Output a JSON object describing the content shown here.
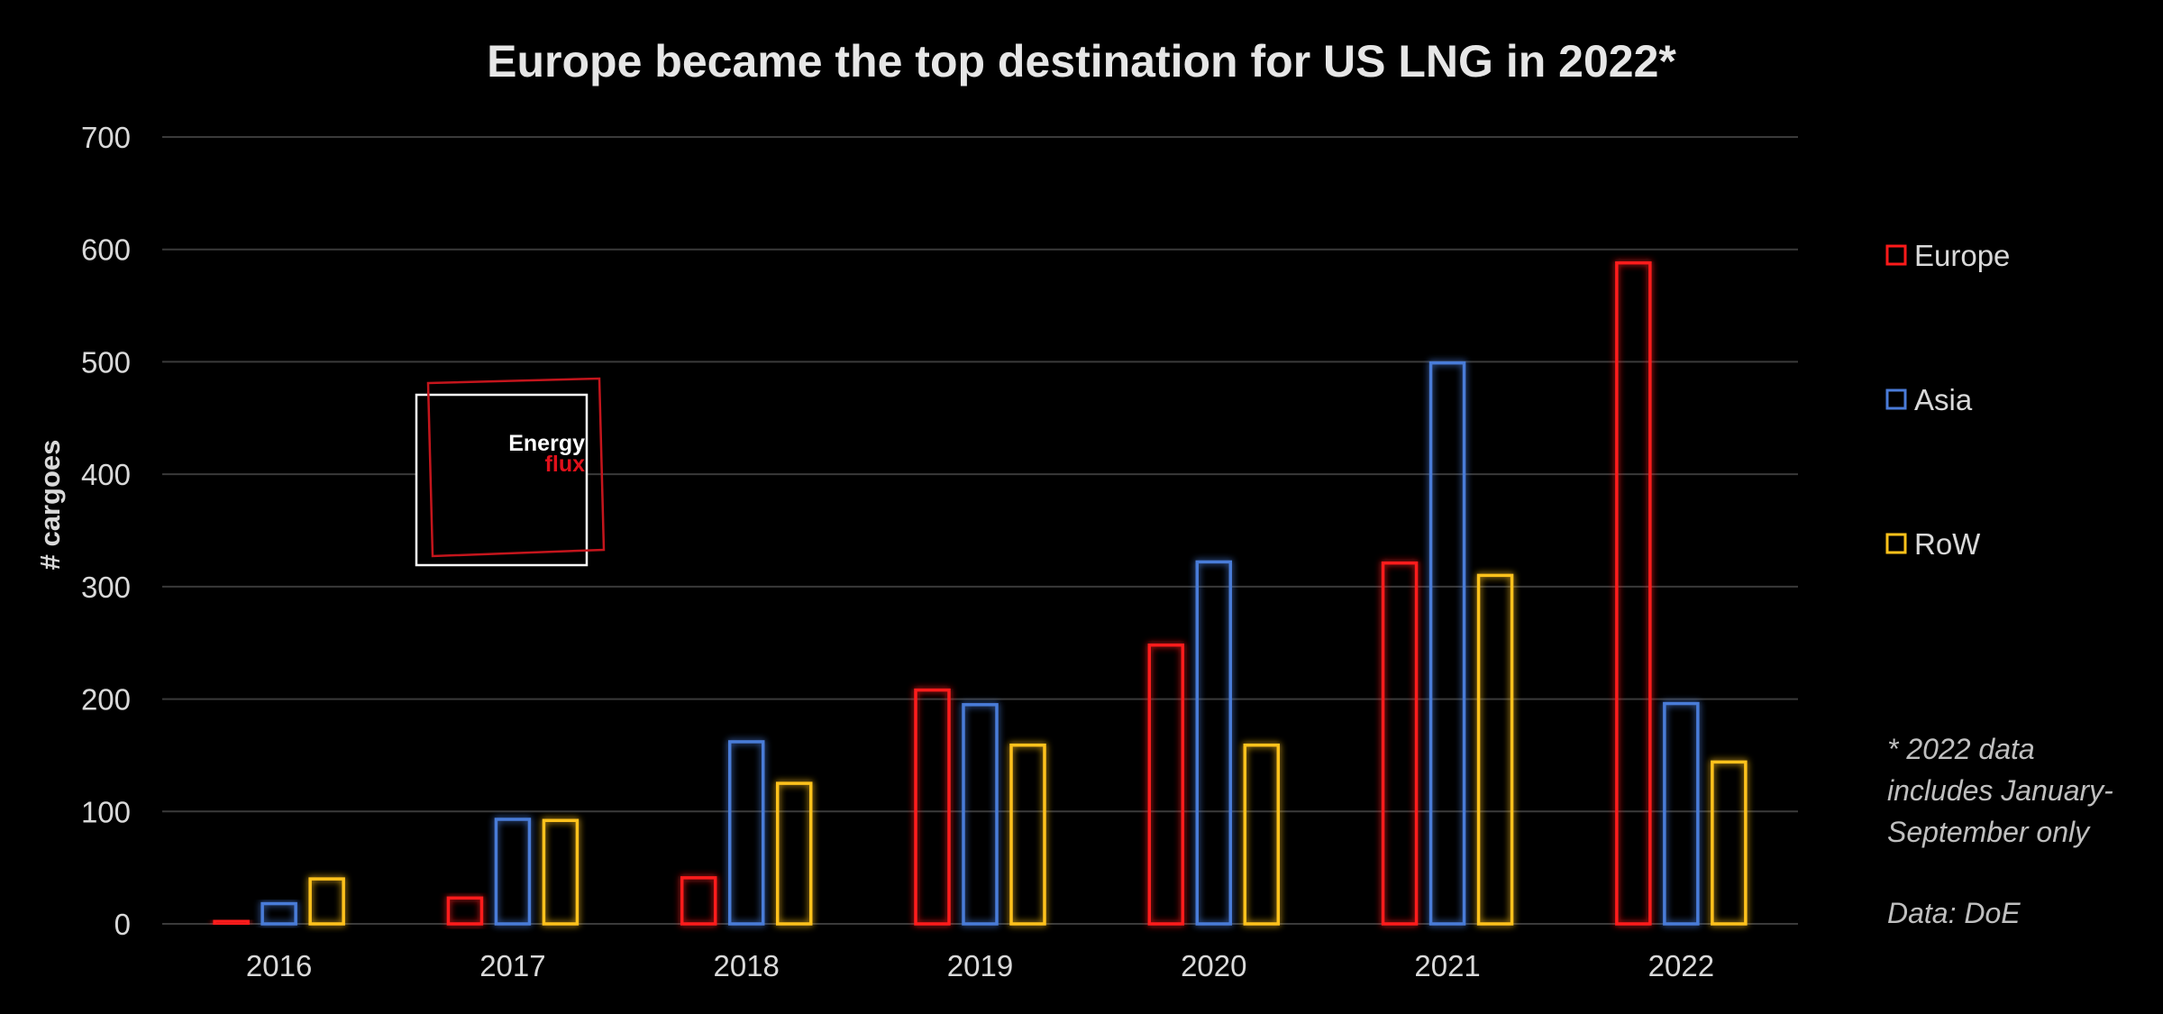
{
  "colors": {
    "europe": "#ff1a1a",
    "asia": "#4a7bd8",
    "row": "#ffc21a",
    "background": "#000000"
  },
  "logo": {
    "line1": "Energy",
    "line2": "flux"
  },
  "notes": {
    "line1": "* 2022 data",
    "line2": "includes January-",
    "line3": "September only",
    "source": "Data: DoE"
  },
  "chart_data": {
    "type": "bar",
    "title": "Europe became the top destination for US LNG in 2022*",
    "xlabel": "",
    "ylabel": "# cargoes",
    "ylim": [
      0,
      700
    ],
    "yticks": [
      0,
      100,
      200,
      300,
      400,
      500,
      600,
      700
    ],
    "grid": true,
    "legend_position": "right",
    "categories": [
      "2016",
      "2017",
      "2018",
      "2019",
      "2020",
      "2021",
      "2022"
    ],
    "series": [
      {
        "name": "Europe",
        "color_key": "europe",
        "values": [
          3,
          23,
          41,
          208,
          248,
          321,
          588
        ]
      },
      {
        "name": "Asia",
        "color_key": "asia",
        "values": [
          18,
          93,
          162,
          195,
          322,
          499,
          196
        ]
      },
      {
        "name": "RoW",
        "color_key": "row",
        "values": [
          40,
          92,
          125,
          159,
          159,
          310,
          144
        ]
      }
    ]
  }
}
